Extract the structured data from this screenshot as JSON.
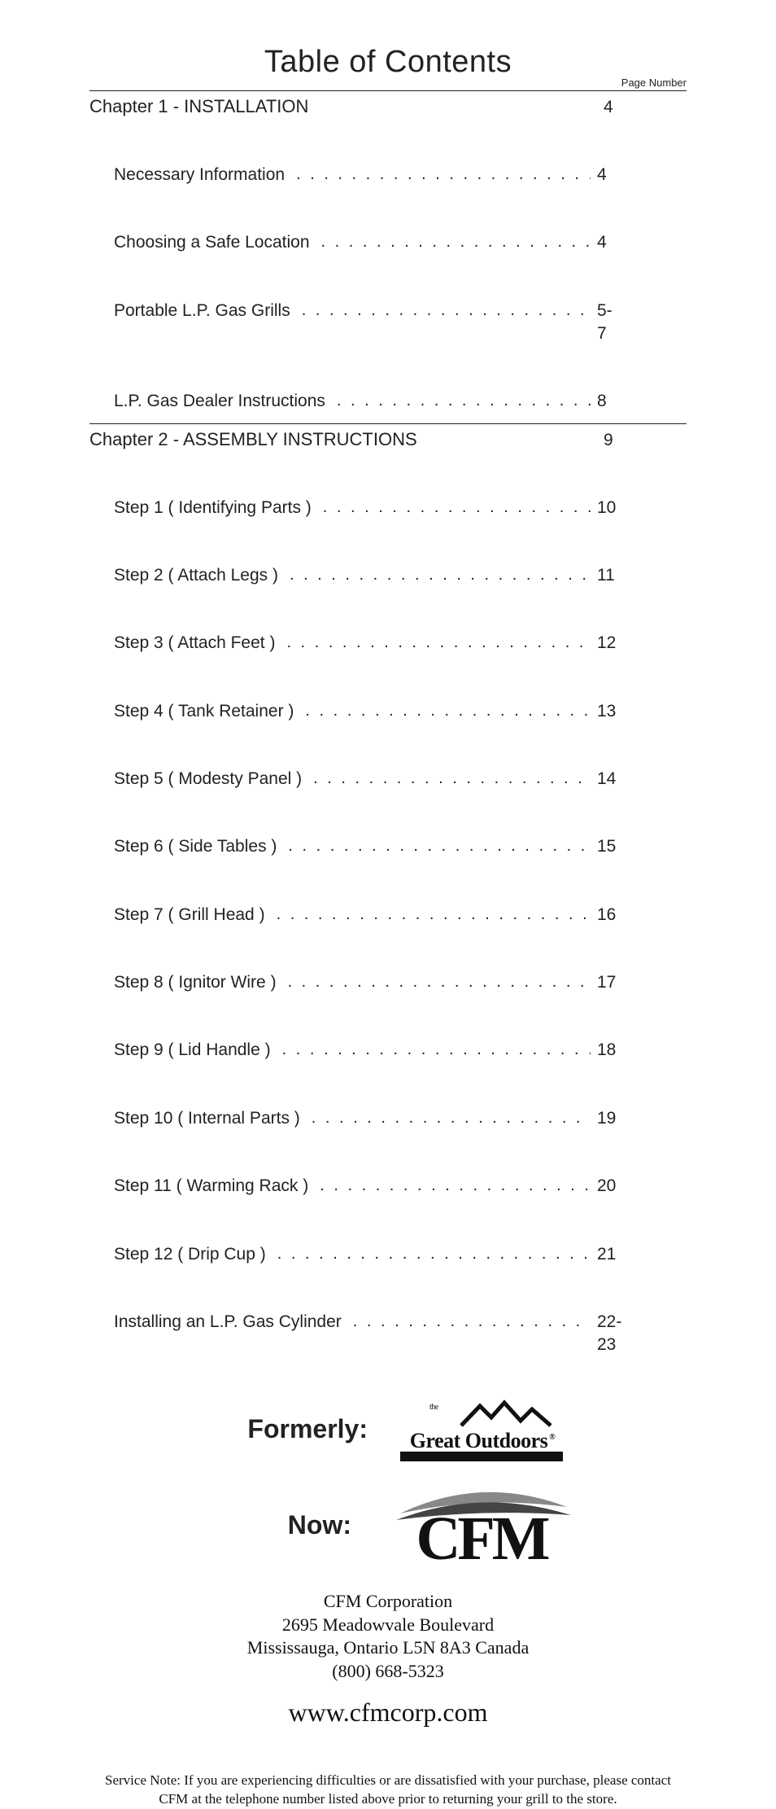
{
  "title": "Table of Contents",
  "pageNumberHeader": "Page Number",
  "chapters": [
    {
      "title": "Chapter 1 - INSTALLATION",
      "page": "4",
      "entries": [
        {
          "label": "Necessary Information",
          "page": "4"
        },
        {
          "label": "Choosing a Safe Location",
          "page": "4"
        },
        {
          "label": "Portable L.P. Gas Grills",
          "page": "5-7"
        },
        {
          "label": "L.P. Gas Dealer Instructions",
          "page": "8"
        }
      ]
    },
    {
      "title": "Chapter 2 - ASSEMBLY INSTRUCTIONS",
      "page": "9",
      "entries": [
        {
          "label": "Step 1 ( Identifying Parts )",
          "page": "10"
        },
        {
          "label": "Step 2 ( Attach Legs )",
          "page": "11"
        },
        {
          "label": "Step 3 ( Attach Feet )",
          "page": "12"
        },
        {
          "label": "Step 4 ( Tank Retainer )",
          "page": "13"
        },
        {
          "label": "Step 5 ( Modesty Panel )",
          "page": "14"
        },
        {
          "label": "Step 6 ( Side Tables )",
          "page": "15"
        },
        {
          "label": "Step 7 ( Grill Head )",
          "page": "16"
        },
        {
          "label": "Step 8 ( Ignitor Wire )",
          "page": "17"
        },
        {
          "label": "Step 9 ( Lid Handle )",
          "page": "18"
        },
        {
          "label": "Step 10 ( Internal Parts )",
          "page": "19"
        },
        {
          "label": "Step 11 ( Warming Rack )",
          "page": "20"
        },
        {
          "label": "Step 12 ( Drip Cup )",
          "page": "21"
        },
        {
          "label": "Installing an L.P. Gas Cylinder",
          "page": "22-23"
        }
      ]
    }
  ],
  "branding": {
    "formerlyLabel": "Formerly:",
    "nowLabel": "Now:",
    "formerLogo": {
      "the": "the",
      "name": "Great Outdoors",
      "reg": "®"
    },
    "corpName": "CFM Corporation",
    "address1": "2695 Meadowvale Boulevard",
    "address2": "Mississauga, Ontario L5N 8A3 Canada",
    "phone": "(800) 668-5323",
    "website": "www.cfmcorp.com"
  },
  "serviceNote": "Service Note: If you are experiencing difficulties or are dissatisfied with your purchase, please contact CFM at the telephone number listed above prior to returning your grill to the store.",
  "colors": {
    "text": "#222222",
    "background": "#ffffff",
    "rule": "#222222"
  }
}
